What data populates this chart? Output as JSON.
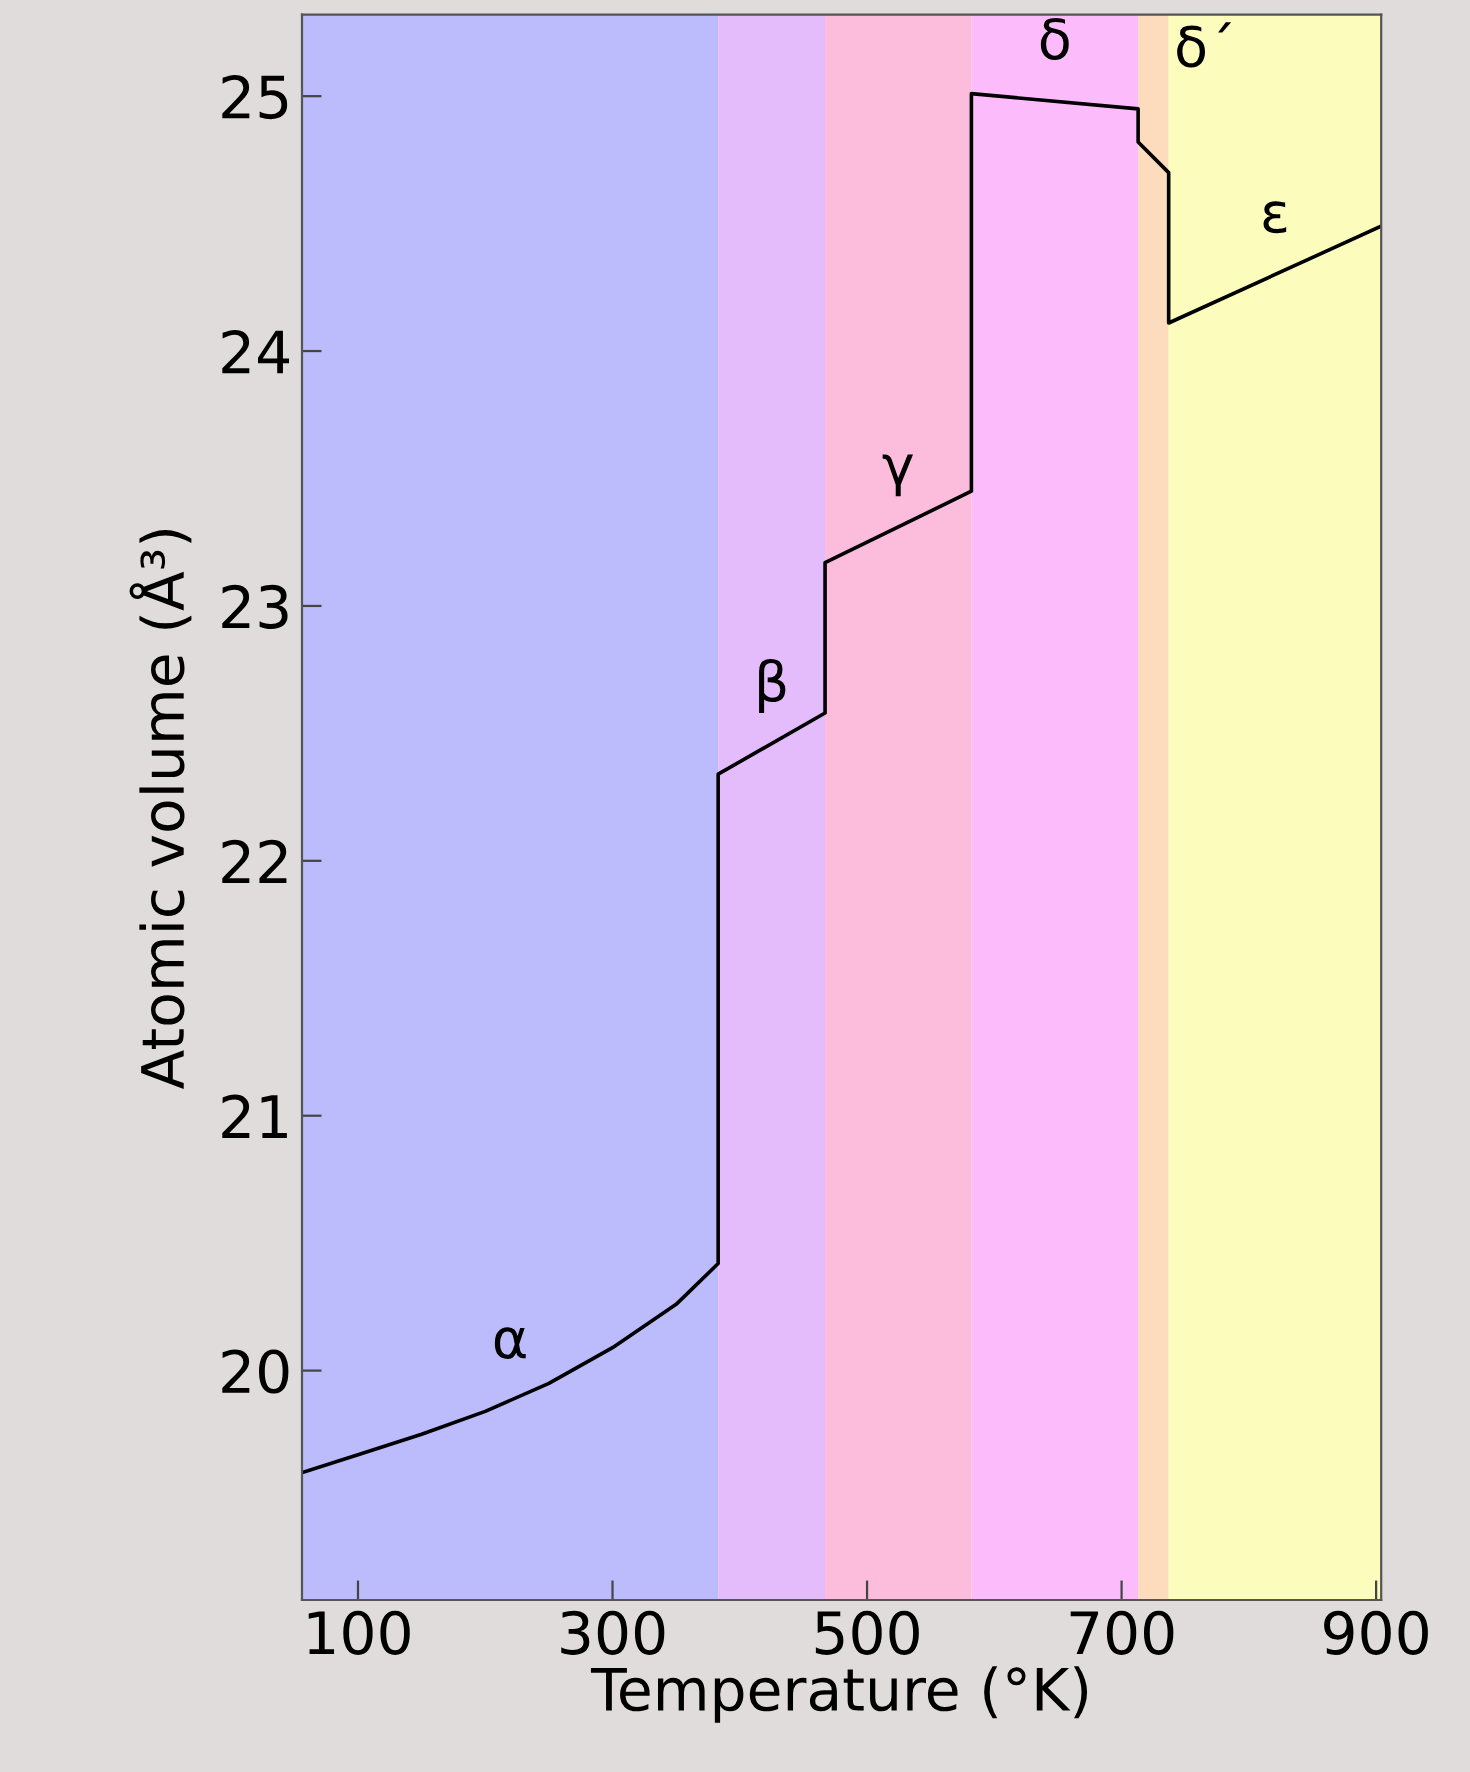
{
  "chart_data": {
    "type": "line",
    "xlabel": "Temperature (°K)",
    "ylabel": "Atomic volume (Å³)",
    "xlim": [
      56,
      904
    ],
    "ylim": [
      19.1,
      25.32
    ],
    "xticks": [
      100,
      300,
      500,
      700,
      900
    ],
    "yticks": [
      20,
      21,
      22,
      23,
      24,
      25
    ],
    "grid": false,
    "legend": false,
    "marker": "none",
    "line_style": "solid",
    "series": [
      {
        "color": "#000000",
        "x": [
          56,
          100,
          150,
          200,
          250,
          300,
          350,
          383,
          383,
          467,
          467,
          582,
          582,
          713,
          713,
          737,
          737,
          904
        ],
        "values": [
          19.6,
          19.67,
          19.75,
          19.84,
          19.95,
          20.09,
          20.26,
          20.42,
          22.34,
          22.58,
          23.17,
          23.45,
          25.01,
          24.95,
          24.82,
          24.7,
          24.11,
          24.49
        ]
      }
    ],
    "bands": [
      {
        "axis": "x",
        "from": 56,
        "to": 383,
        "color": "#bcbcfc"
      },
      {
        "axis": "x",
        "from": 383,
        "to": 467,
        "color": "#e4bcfc"
      },
      {
        "axis": "x",
        "from": 467,
        "to": 582,
        "color": "#fcbcdc"
      },
      {
        "axis": "x",
        "from": 582,
        "to": 713,
        "color": "#fcbcfc"
      },
      {
        "axis": "x",
        "from": 713,
        "to": 737,
        "color": "#fcdcbc"
      },
      {
        "axis": "x",
        "from": 737,
        "to": 904,
        "color": "#fcfcbc"
      }
    ],
    "annotations": [
      "α",
      "β",
      "γ",
      "δ",
      "δ´",
      "ε"
    ]
  }
}
